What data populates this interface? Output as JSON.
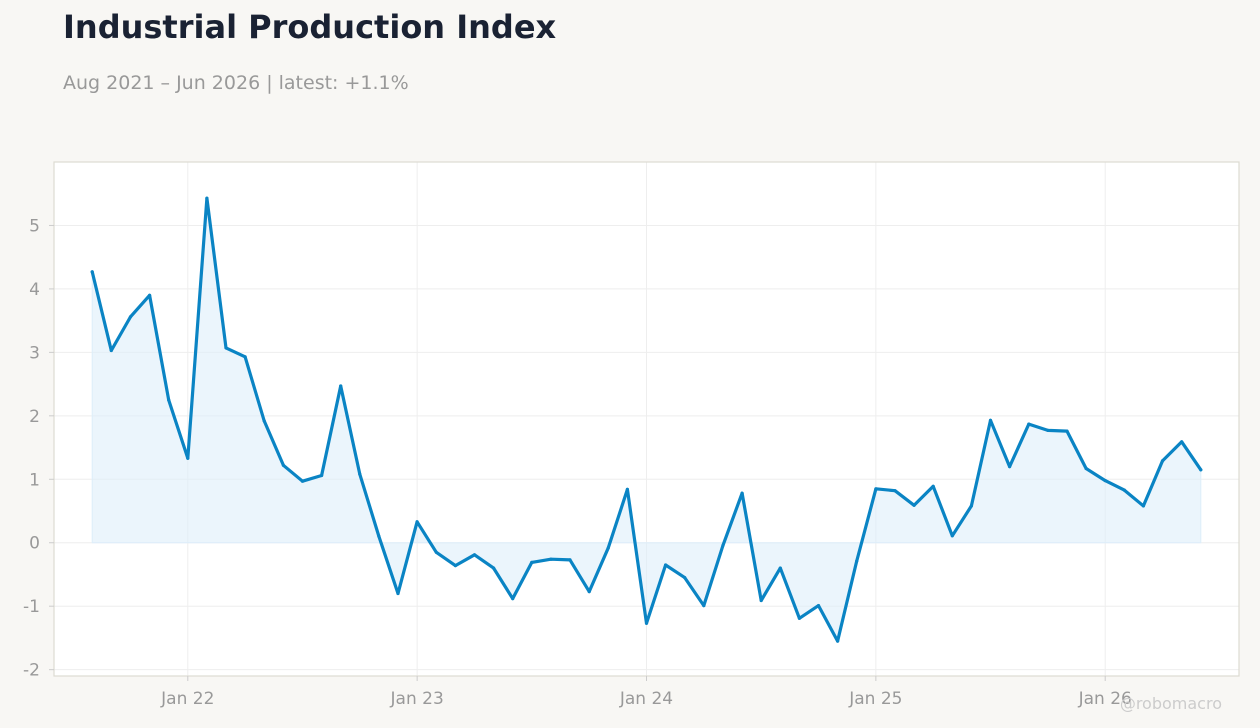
{
  "header": {
    "title": "Industrial Production Index",
    "subtitle": "Aug 2021 – Jun 2026 | latest: +1.1%"
  },
  "watermark": "@robomacro",
  "colors": {
    "background": "#f8f7f4",
    "plot_background": "#ffffff",
    "line": "#0a84c4",
    "area_fill": "#ddeefa",
    "grid": "#eeeeee",
    "frame": "#dddbd2",
    "tick_text": "#999999",
    "title": "#1a2233"
  },
  "chart_data": {
    "type": "area",
    "title": "Industrial Production Index",
    "subtitle": "Aug 2021 – Jun 2026 | latest: +1.1%",
    "xlabel": "",
    "ylabel": "",
    "x_start": "2021-08",
    "x_end": "2026-06",
    "frequency": "monthly",
    "ylim": [
      -2.1,
      6.0
    ],
    "xlim": [
      "2021-06",
      "2026-08"
    ],
    "y_ticks": [
      5,
      4,
      3,
      2,
      1,
      0,
      -1,
      -2
    ],
    "y_tick_labels": [
      "5",
      "4",
      "3",
      "2",
      "1",
      "0",
      "-1",
      "-2"
    ],
    "x_ticks": [
      "2022-01",
      "2023-01",
      "2024-01",
      "2025-01",
      "2026-01"
    ],
    "x_tick_labels": [
      "Jan 22",
      "Jan 23",
      "Jan 24",
      "Jan 25",
      "Jan 26"
    ],
    "grid": true,
    "legend": "none",
    "series": [
      {
        "dates": [
          "2021-08",
          "2021-09",
          "2021-10",
          "2021-11",
          "2021-12",
          "2022-01",
          "2022-02",
          "2022-03",
          "2022-04",
          "2022-05",
          "2022-06",
          "2022-07",
          "2022-08",
          "2022-09",
          "2022-10",
          "2022-11",
          "2022-12",
          "2023-01",
          "2023-02",
          "2023-03",
          "2023-04",
          "2023-05",
          "2023-06",
          "2023-07",
          "2023-08",
          "2023-09",
          "2023-10",
          "2023-11",
          "2023-12",
          "2024-01",
          "2024-02",
          "2024-03",
          "2024-04",
          "2024-05",
          "2024-06",
          "2024-07",
          "2024-08",
          "2024-09",
          "2024-10",
          "2024-11",
          "2024-12",
          "2025-01",
          "2025-02",
          "2025-03",
          "2025-04",
          "2025-05",
          "2025-06",
          "2025-07",
          "2025-08",
          "2025-09",
          "2025-10",
          "2025-11",
          "2025-12",
          "2026-01",
          "2026-02",
          "2026-03",
          "2026-04",
          "2026-05",
          "2026-06"
        ],
        "values": [
          4.27,
          3.03,
          3.56,
          3.9,
          2.25,
          1.33,
          5.43,
          3.07,
          2.93,
          1.92,
          1.22,
          0.97,
          1.06,
          2.47,
          1.08,
          0.1,
          -0.8,
          0.33,
          -0.15,
          -0.36,
          -0.19,
          -0.4,
          -0.88,
          -0.31,
          -0.26,
          -0.27,
          -0.77,
          -0.08,
          0.84,
          -1.27,
          -0.35,
          -0.55,
          -0.99,
          -0.04,
          0.78,
          -0.91,
          -0.4,
          -1.19,
          -0.99,
          -1.55,
          -0.29,
          0.85,
          0.82,
          0.59,
          0.89,
          0.11,
          0.58,
          1.93,
          1.2,
          1.87,
          1.77,
          1.76,
          1.17,
          0.98,
          0.83,
          0.58,
          1.29,
          1.59,
          1.15
        ]
      }
    ]
  }
}
